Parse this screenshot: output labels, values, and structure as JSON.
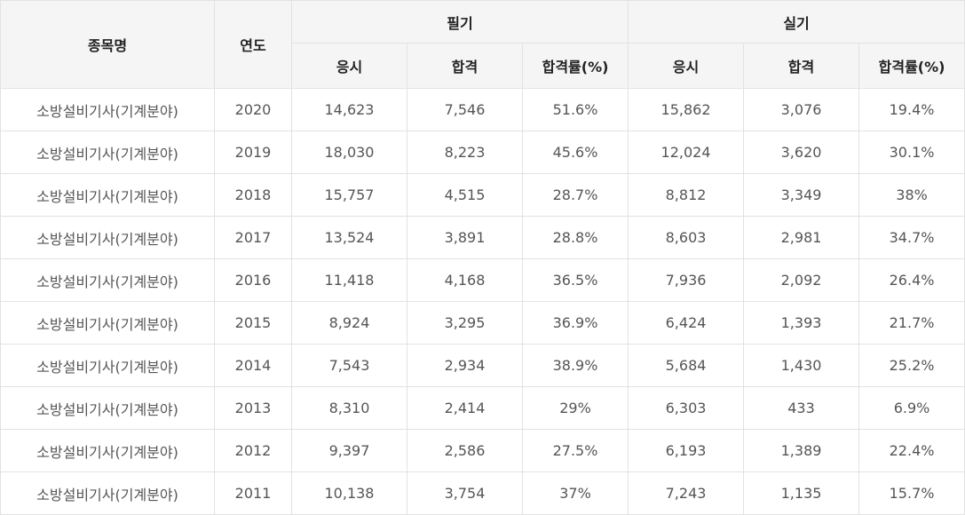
{
  "table": {
    "headers": {
      "item": "종목명",
      "year": "연도",
      "written": "필기",
      "practical": "실기",
      "applicants": "응시",
      "passed": "합격",
      "pass_rate": "합격률(%)"
    },
    "rows": [
      {
        "name": "소방설비기사(기계분야)",
        "year": "2020",
        "w_app": "14,623",
        "w_pass": "7,546",
        "w_rate": "51.6%",
        "p_app": "15,862",
        "p_pass": "3,076",
        "p_rate": "19.4%"
      },
      {
        "name": "소방설비기사(기계분야)",
        "year": "2019",
        "w_app": "18,030",
        "w_pass": "8,223",
        "w_rate": "45.6%",
        "p_app": "12,024",
        "p_pass": "3,620",
        "p_rate": "30.1%"
      },
      {
        "name": "소방설비기사(기계분야)",
        "year": "2018",
        "w_app": "15,757",
        "w_pass": "4,515",
        "w_rate": "28.7%",
        "p_app": "8,812",
        "p_pass": "3,349",
        "p_rate": "38%"
      },
      {
        "name": "소방설비기사(기계분야)",
        "year": "2017",
        "w_app": "13,524",
        "w_pass": "3,891",
        "w_rate": "28.8%",
        "p_app": "8,603",
        "p_pass": "2,981",
        "p_rate": "34.7%"
      },
      {
        "name": "소방설비기사(기계분야)",
        "year": "2016",
        "w_app": "11,418",
        "w_pass": "4,168",
        "w_rate": "36.5%",
        "p_app": "7,936",
        "p_pass": "2,092",
        "p_rate": "26.4%"
      },
      {
        "name": "소방설비기사(기계분야)",
        "year": "2015",
        "w_app": "8,924",
        "w_pass": "3,295",
        "w_rate": "36.9%",
        "p_app": "6,424",
        "p_pass": "1,393",
        "p_rate": "21.7%"
      },
      {
        "name": "소방설비기사(기계분야)",
        "year": "2014",
        "w_app": "7,543",
        "w_pass": "2,934",
        "w_rate": "38.9%",
        "p_app": "5,684",
        "p_pass": "1,430",
        "p_rate": "25.2%"
      },
      {
        "name": "소방설비기사(기계분야)",
        "year": "2013",
        "w_app": "8,310",
        "w_pass": "2,414",
        "w_rate": "29%",
        "p_app": "6,303",
        "p_pass": "433",
        "p_rate": "6.9%"
      },
      {
        "name": "소방설비기사(기계분야)",
        "year": "2012",
        "w_app": "9,397",
        "w_pass": "2,586",
        "w_rate": "27.5%",
        "p_app": "6,193",
        "p_pass": "1,389",
        "p_rate": "22.4%"
      },
      {
        "name": "소방설비기사(기계분야)",
        "year": "2011",
        "w_app": "10,138",
        "w_pass": "3,754",
        "w_rate": "37%",
        "p_app": "7,243",
        "p_pass": "1,135",
        "p_rate": "15.7%"
      }
    ]
  },
  "colors": {
    "header_bg": "#f5f5f5",
    "border": "#e2e2e2",
    "header_text": "#222222",
    "body_text": "#555555"
  }
}
